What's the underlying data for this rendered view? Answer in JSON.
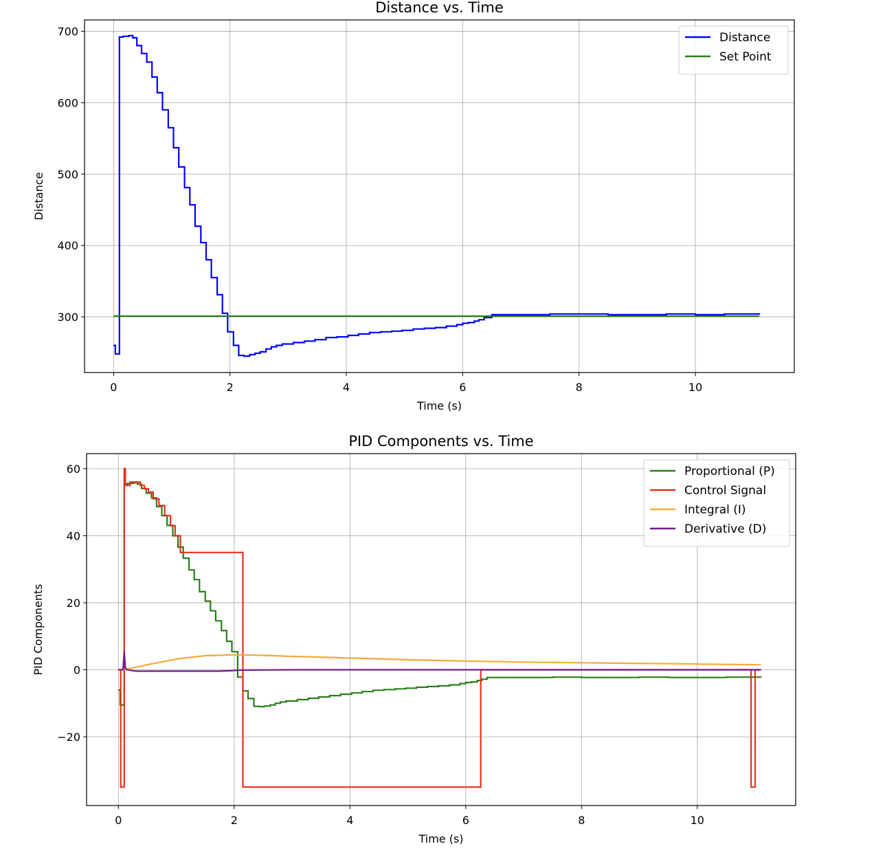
{
  "chart_data": [
    {
      "type": "line",
      "title": "Distance vs. Time",
      "xlabel": "Time (s)",
      "ylabel": "Distance",
      "xlim": [
        -0.5,
        11.7
      ],
      "ylim": [
        222,
        716
      ],
      "xticks": [
        0,
        2,
        4,
        6,
        8,
        10
      ],
      "yticks": [
        300,
        400,
        500,
        600,
        700
      ],
      "grid": true,
      "legend": "top-right",
      "series": [
        {
          "name": "Distance",
          "color": "#0000ff",
          "step": true,
          "x": [
            0,
            0.03,
            0.08,
            0.1,
            0.16,
            0.26,
            0.33,
            0.4,
            0.48,
            0.57,
            0.66,
            0.75,
            0.84,
            0.94,
            1.03,
            1.12,
            1.22,
            1.31,
            1.4,
            1.5,
            1.59,
            1.68,
            1.78,
            1.87,
            1.96,
            2.06,
            2.15,
            2.24,
            2.34,
            2.43,
            2.52,
            2.62,
            2.71,
            2.8,
            2.9,
            3.09,
            3.28,
            3.46,
            3.65,
            3.84,
            4.03,
            4.21,
            4.4,
            4.59,
            4.78,
            4.96,
            5.15,
            5.34,
            5.53,
            5.72,
            5.9,
            6.0,
            6.1,
            6.2,
            6.28,
            6.37,
            6.5,
            7.0,
            7.5,
            8.0,
            8.5,
            9.0,
            9.5,
            10.0,
            10.5,
            11.1
          ],
          "y": [
            260,
            248,
            248,
            692,
            693,
            694,
            691,
            680,
            669,
            657,
            636,
            614,
            590,
            565,
            537,
            510,
            481,
            457,
            427,
            404,
            380,
            355,
            331,
            305,
            279,
            260,
            246,
            245,
            247,
            249,
            251,
            255,
            258,
            260,
            262,
            264,
            266,
            268,
            271,
            272,
            274,
            276,
            278,
            279,
            280,
            281,
            283,
            284,
            285,
            287,
            289,
            291,
            292,
            294,
            296,
            299,
            303,
            303,
            304,
            304,
            303,
            303,
            304,
            303,
            304,
            303
          ]
        },
        {
          "name": "Set Point",
          "color": "#2a7d1a",
          "step": false,
          "x": [
            0,
            11.1
          ],
          "y": [
            301,
            301
          ]
        }
      ]
    },
    {
      "type": "line",
      "title": "PID Components vs. Time",
      "xlabel": "Time (s)",
      "ylabel": "PID Components",
      "xlim": [
        -0.55,
        11.7
      ],
      "ylim": [
        -40.5,
        64.5
      ],
      "xticks": [
        0,
        2,
        4,
        6,
        8,
        10
      ],
      "yticks": [
        -20,
        0,
        20,
        40,
        60
      ],
      "ytick_labels": [
        "−20",
        "0",
        "20",
        "40",
        "60"
      ],
      "grid": true,
      "legend": "top-right",
      "series": [
        {
          "name": "Proportional (P)",
          "color": "#2a7d1a",
          "step": true,
          "x": [
            0,
            0.03,
            0.08,
            0.1,
            0.16,
            0.26,
            0.33,
            0.4,
            0.48,
            0.57,
            0.66,
            0.75,
            0.84,
            0.94,
            1.03,
            1.12,
            1.22,
            1.31,
            1.4,
            1.5,
            1.59,
            1.68,
            1.78,
            1.87,
            1.96,
            2.06,
            2.15,
            2.24,
            2.34,
            2.43,
            2.52,
            2.62,
            2.71,
            2.8,
            2.9,
            3.09,
            3.28,
            3.46,
            3.65,
            3.84,
            4.03,
            4.21,
            4.4,
            4.59,
            4.78,
            4.96,
            5.15,
            5.34,
            5.53,
            5.72,
            5.9,
            6.0,
            6.1,
            6.2,
            6.28,
            6.37,
            6.5,
            7.0,
            7.5,
            8.0,
            8.5,
            9.0,
            9.5,
            10.0,
            10.5,
            11.1
          ],
          "y": [
            -6,
            -10.5,
            -10.5,
            55.4,
            55.6,
            55.8,
            55.4,
            54.1,
            52.7,
            51.3,
            48.7,
            46.0,
            43.1,
            40.0,
            36.6,
            33.3,
            29.8,
            26.9,
            23.3,
            20.5,
            17.6,
            14.6,
            11.7,
            8.5,
            5.4,
            -2.2,
            -6.3,
            -8.6,
            -10.9,
            -11.0,
            -10.8,
            -10.5,
            -10.0,
            -9.6,
            -9.3,
            -8.9,
            -8.5,
            -8.1,
            -7.7,
            -7.3,
            -6.9,
            -6.5,
            -6.1,
            -5.9,
            -5.7,
            -5.5,
            -5.2,
            -5.0,
            -4.8,
            -4.5,
            -4.1,
            -3.8,
            -3.6,
            -3.2,
            -2.8,
            -2.3,
            -2.3,
            -2.3,
            -2.2,
            -2.3,
            -2.3,
            -2.2,
            -2.3,
            -2.3,
            -2.2,
            -2.3
          ]
        },
        {
          "name": "Control Signal",
          "color": "#e8301c",
          "step": true,
          "x": [
            0,
            0.04,
            0.09,
            0.1,
            0.12,
            0.2,
            0.38,
            0.45,
            0.52,
            0.6,
            0.7,
            0.8,
            0.9,
            0.98,
            1.07,
            1.2,
            1.98,
            2.15,
            6.26,
            10.93,
            11.0,
            11.1
          ],
          "y": [
            0,
            -35,
            -35,
            60,
            55,
            56,
            55,
            54,
            53,
            51,
            49,
            46,
            43,
            40,
            35,
            35,
            35,
            -35,
            0,
            -35,
            0,
            0
          ]
        },
        {
          "name": "Integral (I)",
          "color": "#f4a93c",
          "step": false,
          "x": [
            0,
            0.1,
            0.5,
            1.0,
            1.5,
            2.0,
            2.5,
            3.0,
            4.0,
            5.0,
            6.0,
            7.0,
            8.0,
            9.0,
            10.0,
            11.1
          ],
          "y": [
            0,
            0,
            1.5,
            3.2,
            4.2,
            4.5,
            4.3,
            4.0,
            3.5,
            3.0,
            2.6,
            2.3,
            2.1,
            1.9,
            1.7,
            1.5
          ]
        },
        {
          "name": "Derivative (D)",
          "color": "#731a8a",
          "step": false,
          "x": [
            0,
            0.08,
            0.1,
            0.12,
            0.15,
            0.3,
            0.5,
            0.7,
            0.9,
            1.1,
            1.3,
            1.5,
            1.7,
            1.9,
            2.1,
            3.0,
            5.0,
            7.0,
            9.0,
            11.1
          ],
          "y": [
            0,
            0,
            5.5,
            0.5,
            0,
            -0.4,
            -0.4,
            -0.4,
            -0.4,
            -0.4,
            -0.4,
            -0.4,
            -0.4,
            -0.3,
            -0.1,
            0,
            0,
            0,
            0,
            0
          ]
        }
      ]
    }
  ]
}
